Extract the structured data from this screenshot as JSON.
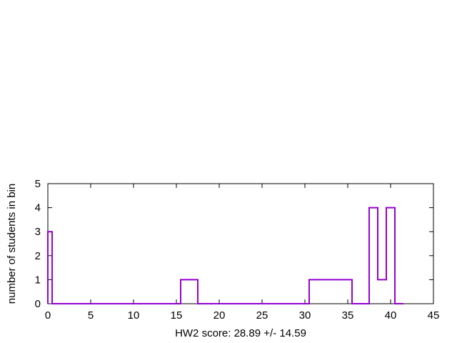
{
  "chart_data": {
    "type": "histogram",
    "xlabel": "HW2 score: 28.89 +/- 14.59",
    "ylabel": "number of students in bin",
    "xlim": [
      0,
      45
    ],
    "ylim": [
      0,
      5
    ],
    "xticks": [
      0,
      5,
      10,
      15,
      20,
      25,
      30,
      35,
      40,
      45
    ],
    "yticks": [
      0,
      1,
      2,
      3,
      4,
      5
    ],
    "grid": false,
    "legend": "none",
    "series": [
      {
        "color": "#9400d3",
        "step_x": [
          0,
          0.5,
          15.5,
          17.5,
          30.5,
          35.5,
          37.5,
          38.5,
          39.5,
          40.5,
          41.5
        ],
        "step_y": [
          3,
          0,
          1,
          0,
          1,
          0,
          4,
          1,
          4,
          0
        ]
      }
    ]
  }
}
